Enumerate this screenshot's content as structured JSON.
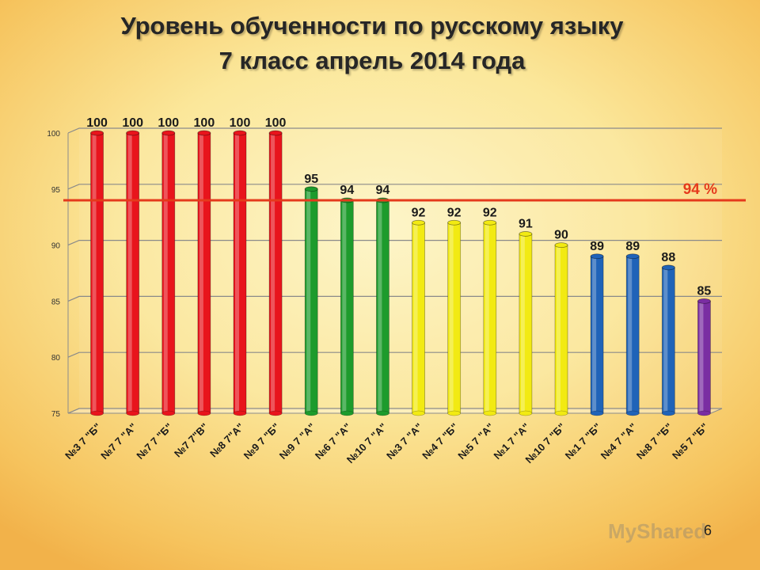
{
  "title_line1": "Уровень обученности по русскому языку",
  "title_line2": "7 класс апрель 2014 года",
  "page_number": "6",
  "watermark": "MyShared",
  "chart_data": {
    "type": "bar",
    "categories": [
      "№3 7 \"Б\"",
      "№7 7 \"А\"",
      "№7 7 \"Б\"",
      "№7 7\"В\"",
      "№8 7\"А\"",
      "№9 7 \"Б\"",
      "№9 7 \"А\"",
      "№6 7 \"А\"",
      "№10 7 \"А\"",
      "№3 7 \"А\"",
      "№4 7 \"Б\"",
      "№5 7 \"А\"",
      "№1 7 \"А\"",
      "№10 7 \"Б\"",
      "№1 7 \"Б\"",
      "№4 7 \"А\"",
      "№8 7 \"Б\"",
      "№5 7 \"Б\""
    ],
    "values": [
      100,
      100,
      100,
      100,
      100,
      100,
      95,
      94,
      94,
      92,
      92,
      92,
      91,
      90,
      89,
      89,
      88,
      85
    ],
    "colors": [
      "#e8141c",
      "#e8141c",
      "#e8141c",
      "#e8141c",
      "#e8141c",
      "#e8141c",
      "#1d9b2c",
      "#1d9b2c",
      "#1d9b2c",
      "#f2ea12",
      "#f2ea12",
      "#f2ea12",
      "#f2ea12",
      "#f2ea12",
      "#1f63b8",
      "#1f63b8",
      "#1f63b8",
      "#7a2ea2"
    ],
    "ylim": [
      75,
      100
    ],
    "yticks": [
      75,
      80,
      85,
      90,
      95,
      100
    ],
    "grid": true,
    "reference_line": {
      "value": 94,
      "label": "94 %",
      "color": "#e53a1c"
    }
  }
}
